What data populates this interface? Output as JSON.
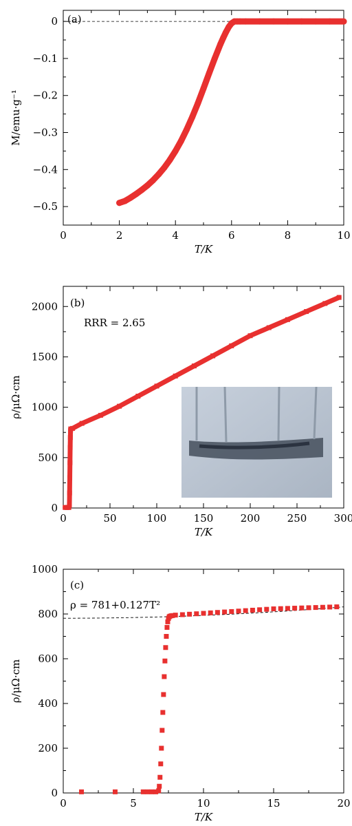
{
  "chart_data": [
    {
      "type": "scatter",
      "panel_label": "(a)",
      "xlabel": "T/K",
      "ylabel": "M/emu·g⁻¹",
      "xlim": [
        0,
        10
      ],
      "ylim": [
        -0.55,
        0.03
      ],
      "xticks": [
        0,
        2,
        4,
        6,
        8,
        10
      ],
      "xtick_labels": [
        "0",
        "2",
        "4",
        "6",
        "8",
        "10"
      ],
      "yticks": [
        0,
        -0.1,
        -0.2,
        -0.3,
        -0.4,
        -0.5
      ],
      "ytick_labels": [
        "0",
        "−0.1",
        "−0.2",
        "−0.3",
        "−0.4",
        "−0.5"
      ],
      "reference_line": {
        "y": 0,
        "style": "dashed"
      },
      "marker_color": "#e8302f",
      "series": [
        {
          "x": [
            2.0,
            2.2,
            2.4,
            2.6,
            2.8,
            3.0,
            3.2,
            3.4,
            3.6,
            3.8,
            4.0,
            4.2,
            4.4,
            4.6,
            4.8,
            5.0,
            5.2,
            5.4,
            5.6,
            5.7,
            5.8,
            5.9,
            6.0,
            6.1,
            6.2,
            6.3,
            6.5,
            7.0,
            7.5,
            8.0,
            8.5,
            9.0,
            9.5,
            10.0
          ],
          "y": [
            -0.49,
            -0.485,
            -0.476,
            -0.466,
            -0.455,
            -0.443,
            -0.429,
            -0.413,
            -0.395,
            -0.374,
            -0.35,
            -0.323,
            -0.292,
            -0.258,
            -0.221,
            -0.181,
            -0.14,
            -0.1,
            -0.062,
            -0.045,
            -0.029,
            -0.015,
            -0.005,
            0.0,
            0.0,
            0.0,
            0.0,
            0.0,
            0.0,
            0.0,
            0.0,
            0.0,
            0.0,
            0.0
          ]
        }
      ]
    },
    {
      "type": "scatter",
      "panel_label": "(b)",
      "annotation": "RRR = 2.65",
      "xlabel": "T/K",
      "ylabel": "ρ/μΩ·cm",
      "xlim": [
        0,
        300
      ],
      "ylim": [
        0,
        2200
      ],
      "xticks": [
        0,
        50,
        100,
        150,
        200,
        250,
        300
      ],
      "xtick_labels": [
        "0",
        "50",
        "100",
        "150",
        "200",
        "250",
        "300"
      ],
      "yticks": [
        0,
        500,
        1000,
        1500,
        2000
      ],
      "ytick_labels": [
        "0",
        "500",
        "1000",
        "1500",
        "2000"
      ],
      "marker_color": "#e8302f",
      "series": [
        {
          "x": [
            2,
            4,
            6,
            6.6,
            6.8,
            7.0,
            7.2,
            7.4,
            7.6,
            7.8,
            8,
            10,
            20,
            40,
            60,
            80,
            100,
            120,
            140,
            160,
            180,
            200,
            220,
            240,
            260,
            280,
            295
          ],
          "y": [
            5,
            5,
            5,
            30,
            150,
            300,
            450,
            600,
            700,
            770,
            785,
            790,
            840,
            920,
            1010,
            1110,
            1210,
            1310,
            1410,
            1510,
            1610,
            1710,
            1790,
            1870,
            1950,
            2030,
            2090
          ]
        }
      ],
      "inset": {
        "content": "photo",
        "description_hidden": true
      }
    },
    {
      "type": "scatter",
      "panel_label": "(c)",
      "annotation": "ρ = 781+0.127T²",
      "xlabel": "T/K",
      "ylabel": "ρ/μΩ·cm",
      "xlim": [
        0,
        20
      ],
      "ylim": [
        0,
        1000
      ],
      "xticks": [
        0,
        5,
        10,
        15,
        20
      ],
      "xtick_labels": [
        "0",
        "5",
        "10",
        "15",
        "20"
      ],
      "yticks": [
        0,
        200,
        400,
        600,
        800,
        1000
      ],
      "ytick_labels": [
        "0",
        "200",
        "400",
        "600",
        "800",
        "1000"
      ],
      "fit": {
        "a": 781,
        "b": 0.127,
        "xrange": [
          0,
          20
        ],
        "style": "dashed"
      },
      "marker_color": "#e8302f",
      "series": [
        {
          "x": [
            1.3,
            3.7,
            5.7,
            6.0,
            6.3,
            6.6,
            6.8,
            6.85,
            6.9,
            6.95,
            7.0,
            7.05,
            7.1,
            7.15,
            7.2,
            7.25,
            7.3,
            7.35,
            7.4,
            7.45,
            7.5,
            7.55,
            7.6,
            7.7,
            7.8,
            8.0,
            8.5,
            9.0,
            9.5,
            10.0,
            10.5,
            11.0,
            11.5,
            12.0,
            12.5,
            13.0,
            13.5,
            14.0,
            14.5,
            15.0,
            15.5,
            16.0,
            16.5,
            17.0,
            17.5,
            18.0,
            18.5,
            19.0,
            19.5
          ],
          "y": [
            5,
            5,
            5,
            5,
            5,
            5,
            10,
            30,
            70,
            130,
            200,
            280,
            360,
            440,
            520,
            590,
            650,
            700,
            740,
            765,
            780,
            787,
            790,
            792,
            793,
            795,
            797,
            799,
            801,
            803,
            805,
            807,
            809,
            811,
            813,
            815,
            817,
            819,
            821,
            823,
            824,
            825,
            826,
            827,
            828,
            829,
            830,
            831,
            832
          ]
        }
      ]
    }
  ]
}
